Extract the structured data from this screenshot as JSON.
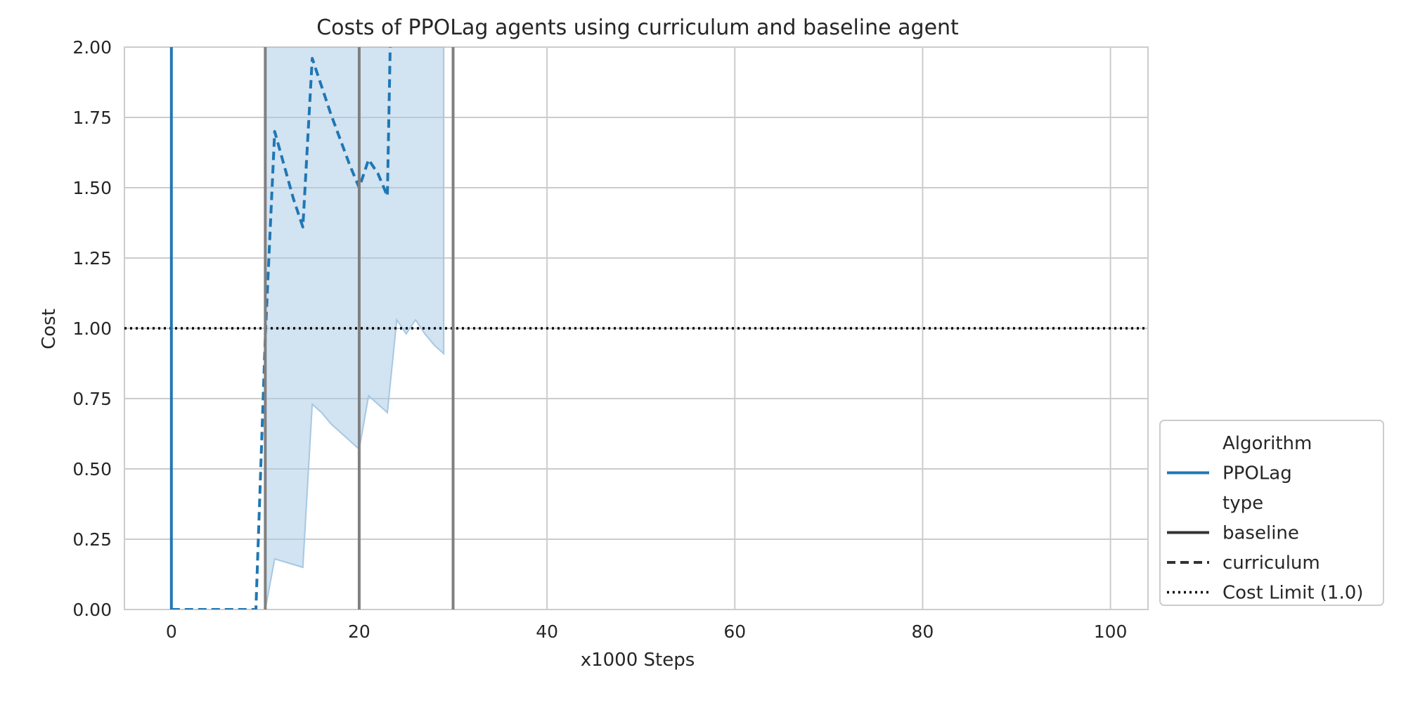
{
  "chart_data": {
    "type": "line",
    "title": "Costs of PPOLag agents using curriculum and baseline agent",
    "xlabel": "x1000 Steps",
    "ylabel": "Cost",
    "xlim": [
      -5,
      104
    ],
    "ylim": [
      0,
      2.0
    ],
    "x_ticks": [
      0,
      20,
      40,
      60,
      80,
      100
    ],
    "y_ticks": [
      "0.00",
      "0.25",
      "0.50",
      "0.75",
      "1.00",
      "1.25",
      "1.50",
      "1.75",
      "2.00"
    ],
    "grid": true,
    "legend_position": "lower-right outside",
    "colors": {
      "ppolag": "#1f77b4",
      "band": "#a6c8e3",
      "vline": "#808080",
      "cost_limit": "#000000",
      "grid": "#cccccc",
      "legend_key": "#333333"
    },
    "series": [
      {
        "name": "PPOLag",
        "type_label": "baseline",
        "style": "solid",
        "points": [
          [
            0,
            0.0
          ],
          [
            0,
            2.0
          ]
        ]
      },
      {
        "name": "PPOLag",
        "type_label": "curriculum",
        "style": "dashed",
        "points": [
          [
            0,
            0.0
          ],
          [
            9,
            0.0
          ],
          [
            10,
            0.97
          ],
          [
            11,
            1.7
          ],
          [
            12,
            1.58
          ],
          [
            13,
            1.46
          ],
          [
            14,
            1.36
          ],
          [
            15,
            1.96
          ],
          [
            16,
            1.86
          ],
          [
            17,
            1.76
          ],
          [
            18,
            1.67
          ],
          [
            19,
            1.58
          ],
          [
            20,
            1.5
          ],
          [
            21,
            1.6
          ],
          [
            22,
            1.55
          ],
          [
            23,
            1.47
          ],
          [
            23.3,
            2.0
          ]
        ],
        "band": {
          "x": [
            10,
            11,
            12,
            13,
            14,
            15,
            16,
            17,
            18,
            19,
            20,
            21,
            22,
            23,
            24,
            25,
            26,
            27,
            28,
            29
          ],
          "lower": [
            0.0,
            0.18,
            0.17,
            0.16,
            0.15,
            0.73,
            0.7,
            0.66,
            0.63,
            0.6,
            0.57,
            0.76,
            0.73,
            0.7,
            1.03,
            0.98,
            1.03,
            0.98,
            0.94,
            0.91
          ],
          "upper": [
            2.0,
            2.0,
            2.0,
            2.0,
            2.0,
            2.0,
            2.0,
            2.0,
            2.0,
            2.0,
            2.0,
            2.0,
            2.0,
            2.0,
            2.0,
            2.0,
            2.0,
            2.0,
            2.0,
            2.0
          ]
        }
      }
    ],
    "reference_lines": {
      "cost_limit": 1.0,
      "vertical_x": [
        10,
        20,
        30
      ]
    },
    "legend": {
      "entries": [
        {
          "label": "Algorithm",
          "kind": "header"
        },
        {
          "label": "PPOLag",
          "kind": "solid-blue"
        },
        {
          "label": "type",
          "kind": "header"
        },
        {
          "label": "baseline",
          "kind": "solid"
        },
        {
          "label": "curriculum",
          "kind": "dashed"
        },
        {
          "label": "Cost Limit (1.0)",
          "kind": "dotted"
        }
      ]
    }
  }
}
